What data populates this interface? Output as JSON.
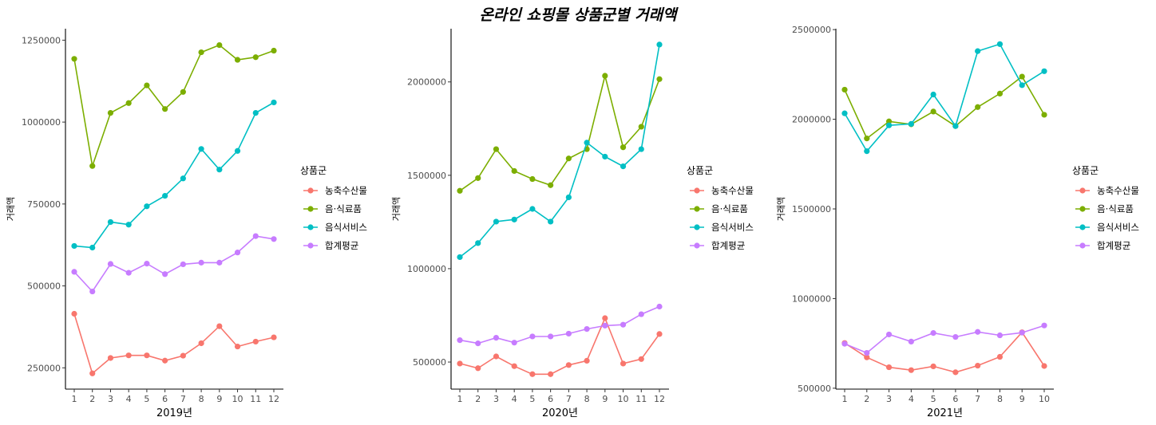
{
  "title": "온라인 쇼핑몰 상품군별 거래액",
  "chart_data": [
    {
      "type": "line",
      "xlabel": "2019년",
      "ylabel": "거래액",
      "x": [
        1,
        2,
        3,
        4,
        5,
        6,
        7,
        8,
        9,
        10,
        11,
        12
      ],
      "yticks": [
        250000,
        500000,
        750000,
        1000000,
        1250000
      ],
      "ylim": [
        185000,
        1285000
      ],
      "legend_title": "상품군",
      "series": [
        {
          "name": "농축수산물",
          "color": "#F8766D",
          "values": [
            415000,
            233000,
            280000,
            288000,
            288000,
            272000,
            287000,
            325000,
            377000,
            315000,
            330000,
            343000
          ]
        },
        {
          "name": "음·식료품",
          "color": "#7CAE00",
          "values": [
            1193000,
            866000,
            1028000,
            1058000,
            1112000,
            1040000,
            1092000,
            1213000,
            1235000,
            1190000,
            1198000,
            1218000
          ]
        },
        {
          "name": "음식서비스",
          "color": "#00BFC4",
          "values": [
            622000,
            617000,
            695000,
            687000,
            743000,
            775000,
            828000,
            918000,
            855000,
            912000,
            1028000,
            1060000
          ]
        },
        {
          "name": "합계평균",
          "color": "#C77CFF",
          "values": [
            543000,
            483000,
            567000,
            540000,
            568000,
            536000,
            566000,
            571000,
            571000,
            602000,
            652000,
            643000
          ]
        }
      ]
    },
    {
      "type": "line",
      "xlabel": "2020년",
      "ylabel": "거래액",
      "x": [
        1,
        2,
        3,
        4,
        5,
        6,
        7,
        8,
        9,
        10,
        11,
        12
      ],
      "yticks": [
        500000,
        1000000,
        1500000,
        2000000
      ],
      "ylim": [
        355000,
        2285000
      ],
      "legend_title": "상품군",
      "series": [
        {
          "name": "농축수산물",
          "color": "#F8766D",
          "values": [
            492000,
            467000,
            530000,
            478000,
            435000,
            435000,
            484000,
            507000,
            735000,
            492000,
            516000,
            650000
          ]
        },
        {
          "name": "음·식료품",
          "color": "#7CAE00",
          "values": [
            1417000,
            1485000,
            1640000,
            1523000,
            1480000,
            1447000,
            1590000,
            1640000,
            2033000,
            1650000,
            1760000,
            2015000
          ]
        },
        {
          "name": "음식서비스",
          "color": "#00BFC4",
          "values": [
            1062000,
            1137000,
            1252000,
            1263000,
            1320000,
            1252000,
            1382000,
            1675000,
            1600000,
            1548000,
            1640000,
            2200000
          ]
        },
        {
          "name": "합계평균",
          "color": "#C77CFF",
          "values": [
            617000,
            600000,
            630000,
            604000,
            637000,
            637000,
            652000,
            677000,
            695000,
            700000,
            756000,
            797000
          ]
        }
      ]
    },
    {
      "type": "line",
      "xlabel": "2021년",
      "ylabel": "거래액",
      "x": [
        1,
        2,
        3,
        4,
        5,
        6,
        7,
        8,
        9,
        10
      ],
      "yticks": [
        500000,
        1000000,
        1500000,
        2000000,
        2500000
      ],
      "ylim": [
        495000,
        2505000
      ],
      "legend_title": "상품군",
      "series": [
        {
          "name": "농축수산물",
          "color": "#F8766D",
          "values": [
            752000,
            672000,
            617000,
            601000,
            622000,
            589000,
            626000,
            675000,
            812000,
            624000
          ]
        },
        {
          "name": "음·식료품",
          "color": "#7CAE00",
          "values": [
            2165000,
            1893000,
            1988000,
            1972000,
            2043000,
            1962000,
            2068000,
            2143000,
            2238000,
            2025000
          ]
        },
        {
          "name": "음식서비스",
          "color": "#00BFC4",
          "values": [
            2033000,
            1822000,
            1966000,
            1974000,
            2138000,
            1962000,
            2380000,
            2419000,
            2190000,
            2268000
          ]
        },
        {
          "name": "합계평균",
          "color": "#C77CFF",
          "values": [
            748000,
            697000,
            800000,
            760000,
            808000,
            786000,
            814000,
            795000,
            810000,
            850000
          ]
        }
      ]
    }
  ]
}
